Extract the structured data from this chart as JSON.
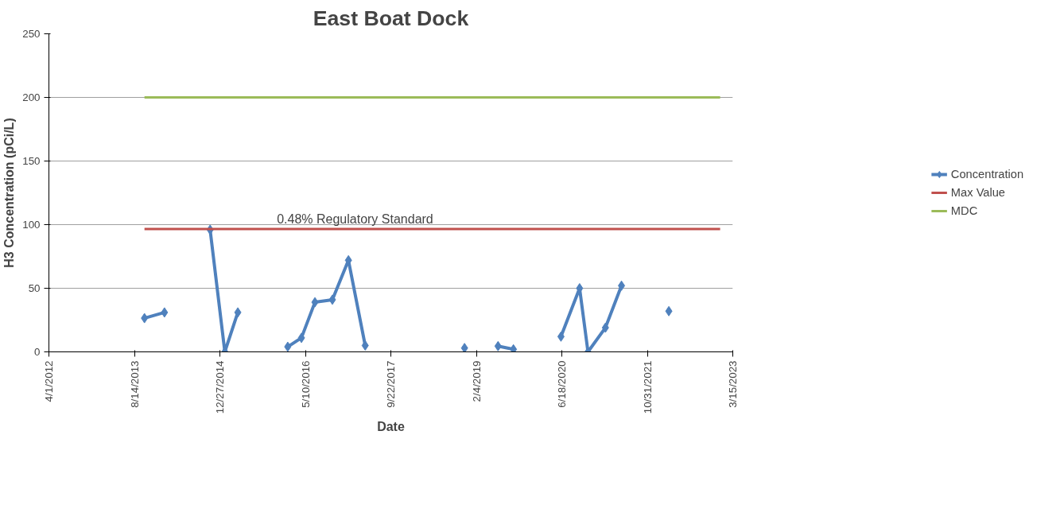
{
  "chart_data": {
    "type": "line",
    "title": "East Boat Dock",
    "xlabel": "Date",
    "ylabel": "H3 Concentration (pCi/L)",
    "x": [
      "2013-10-12",
      "2014-02-06",
      "2014-06-01",
      "2014-10-31",
      "2015-01-25",
      "2015-04-11",
      "2015-08-01",
      "2016-01-28",
      "2016-04-17",
      "2016-07-05",
      "2016-10-15",
      "2017-01-17",
      "2017-04-25",
      "2017-08-01",
      "2018-11-27",
      "2019-02-20",
      "2019-06-11",
      "2019-09-09",
      "2020-01-01",
      "2020-06-13",
      "2020-09-30",
      "2020-11-18",
      "2021-02-28",
      "2021-06-02",
      "2021-10-01",
      "2022-03-06"
    ],
    "series": [
      {
        "name": "Concentration",
        "color": "#4f81bd",
        "marker": "diamond",
        "values": [
          26.5,
          31,
          null,
          96,
          0,
          31,
          null,
          4,
          11,
          39,
          41,
          72,
          5,
          null,
          3,
          null,
          4.5,
          2,
          null,
          12,
          50,
          0,
          19,
          52,
          null,
          32
        ]
      },
      {
        "name": "Max Value",
        "color": "#c0504d",
        "marker": "none",
        "x": [
          "2013-10-12",
          "2022-12-31"
        ],
        "values": [
          96.5,
          96.5
        ]
      },
      {
        "name": "MDC",
        "color": "#9bbb59",
        "marker": "none",
        "x": [
          "2013-10-12",
          "2022-12-31"
        ],
        "values": [
          200,
          200
        ]
      }
    ],
    "annotations": [
      "0.48% Regulatory Standard"
    ],
    "xlim": [
      "2012-04-01",
      "2023-03-15"
    ],
    "xticks": [
      {
        "value": "2012-04-01",
        "label": "4/1/2012"
      },
      {
        "value": "2013-08-14",
        "label": "8/14/2013"
      },
      {
        "value": "2014-12-27",
        "label": "12/27/2014"
      },
      {
        "value": "2016-05-10",
        "label": "5/10/2016"
      },
      {
        "value": "2017-09-22",
        "label": "9/22/2017"
      },
      {
        "value": "2019-02-04",
        "label": "2/4/2019"
      },
      {
        "value": "2020-06-18",
        "label": "6/18/2020"
      },
      {
        "value": "2021-10-31",
        "label": "10/31/2021"
      },
      {
        "value": "2023-03-15",
        "label": "3/15/2023"
      }
    ],
    "ylim": [
      0,
      250
    ],
    "yticks": [
      0,
      50,
      100,
      150,
      200,
      250
    ],
    "grid": "y",
    "legend": "right",
    "line_style": "solid"
  }
}
